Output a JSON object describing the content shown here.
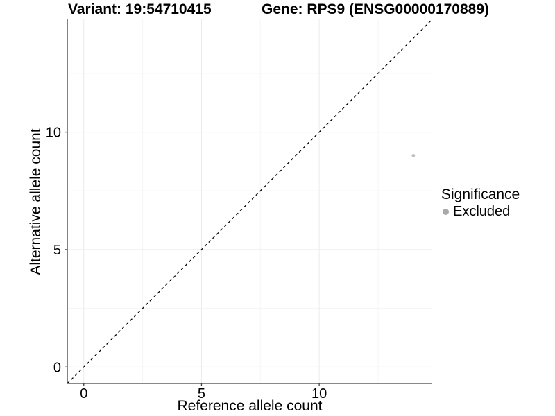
{
  "chart_data": {
    "type": "scatter",
    "title_left": "Variant: 19:54710415",
    "title_right": "Gene: RPS9 (ENSG00000170889)",
    "xlabel": "Reference allele count",
    "ylabel": "Alternative allele count",
    "xlim": [
      -0.7,
      14.8
    ],
    "ylim": [
      -0.7,
      14.8
    ],
    "x_major_ticks": [
      0,
      5,
      10
    ],
    "y_major_ticks": [
      0,
      5,
      10
    ],
    "x_minor_gridlines": [
      2.5,
      7.5,
      12.5
    ],
    "y_minor_gridlines": [
      2.5,
      7.5,
      12.5
    ],
    "grid": "on",
    "identity_line": {
      "equation": "y = x",
      "style": "dashed",
      "color": "#000000"
    },
    "series": [
      {
        "name": "Excluded",
        "color": "#c0c0c0",
        "points": [
          {
            "x": 14,
            "y": 9
          }
        ]
      }
    ],
    "legend": {
      "position": "right",
      "title": "Significance",
      "items": [
        {
          "label": "Excluded",
          "color": "#a9a9a9"
        }
      ]
    }
  },
  "colors": {
    "background": "#ffffff",
    "axis_line": "#404040",
    "tick_mark": "#404040",
    "grid_major": "#ebebeb",
    "grid_minor": "#f5f5f5",
    "text": "#000000"
  }
}
